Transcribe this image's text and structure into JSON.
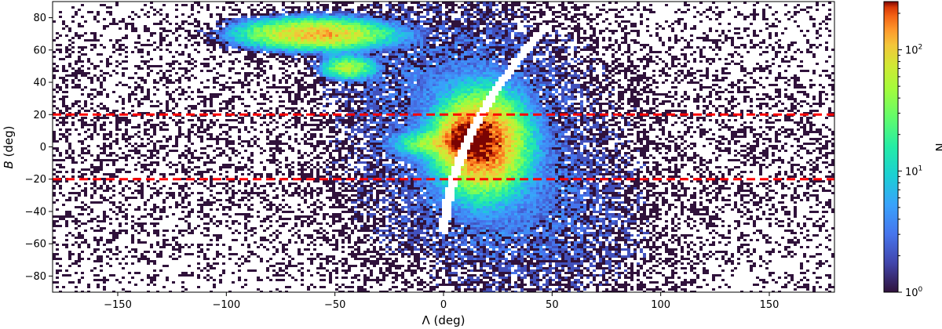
{
  "chart_data": {
    "type": "heatmap",
    "xlabel": "Λ (deg)",
    "ylabel_italic": "B",
    "ylabel_rest": " (deg)",
    "xlim": [
      -180,
      180
    ],
    "ylim": [
      -90,
      90
    ],
    "xticks": [
      -150,
      -100,
      -50,
      0,
      50,
      100,
      150
    ],
    "yticks": [
      -80,
      -60,
      -40,
      -20,
      0,
      20,
      40,
      60,
      80
    ],
    "colorbar": {
      "label": "N",
      "scale": "log",
      "range": [
        1,
        250
      ],
      "ticks": [
        {
          "base": "10",
          "exp": "0",
          "value": 1
        },
        {
          "base": "10",
          "exp": "1",
          "value": 10
        },
        {
          "base": "10",
          "exp": "2",
          "value": 100
        }
      ],
      "colormap": "turbo"
    },
    "reference_lines": [
      {
        "y": 20,
        "color": "#ff0000",
        "style": "dashed"
      },
      {
        "y": -20,
        "color": "#ff0000",
        "style": "dashed"
      }
    ],
    "density_features": [
      {
        "center": [
          -60,
          70
        ],
        "spread": [
          16,
          4.5
        ],
        "peak_counts": 140
      },
      {
        "center": [
          -44,
          49
        ],
        "spread": [
          6,
          3.5
        ],
        "peak_counts": 50
      },
      {
        "center": [
          18,
          2
        ],
        "spread": [
          9,
          14
        ],
        "peak_counts": 250
      },
      {
        "center": [
          10,
          6
        ],
        "spread": [
          6,
          8
        ],
        "peak_counts": 180
      },
      {
        "center": [
          0,
          2
        ],
        "spread": [
          10,
          4
        ],
        "peak_counts": 60
      }
    ],
    "gap_curve": {
      "description_points": [
        [
          -5,
          -50
        ],
        [
          10,
          0
        ],
        [
          22,
          40
        ],
        [
          38,
          70
        ]
      ]
    }
  }
}
